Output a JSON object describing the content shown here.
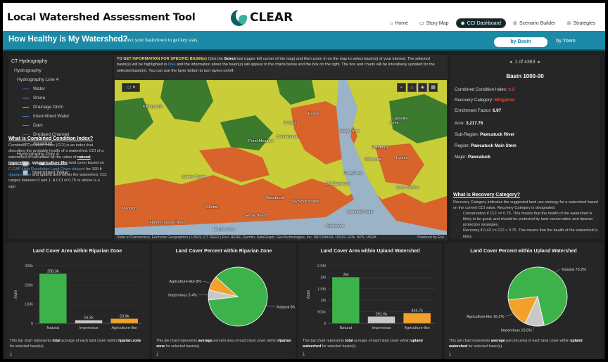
{
  "header": {
    "app_title": "Local Watershed Assessment Tool",
    "logo_text": "CLEAR",
    "nav": [
      {
        "label": "Home",
        "icon": "home-icon",
        "glyph": "⌂"
      },
      {
        "label": "Story Map",
        "icon": "map-book-icon",
        "glyph": "▭"
      },
      {
        "label": "CCI Dashboard",
        "icon": "location-icon",
        "glyph": "◉"
      },
      {
        "label": "Scenario Builder",
        "icon": "pin-icon",
        "glyph": "◎"
      },
      {
        "label": "Strategies",
        "icon": "marker-icon",
        "glyph": "◎"
      }
    ]
  },
  "banner": {
    "title": "How Healthy is My Watershed?",
    "subtitle": "select your basin/town to get key stats.",
    "by_basin": "by Basin",
    "by_town": "by Town"
  },
  "legend": {
    "title": "CT Hydrography",
    "group1": "Hydrography",
    "line_group": "Hydrography Line 4",
    "line_items": [
      {
        "label": "Water",
        "color": "#3b6fd8"
      },
      {
        "label": "Shore",
        "color": "#5aa0e8"
      },
      {
        "label": "Drainage Ditch",
        "color": "#7fd4f0"
      },
      {
        "label": "Intermittent Water",
        "color": "#4a7ad0"
      },
      {
        "label": "Dam",
        "color": "#777777"
      },
      {
        "label": "Dredged Channel",
        "color": "#555555"
      },
      {
        "label": "Aqueduct",
        "color": "#b04ab0"
      }
    ],
    "poly_group": "Hydrography Poly 4",
    "poly_items": [
      {
        "label": "Water",
        "color": "#8fa0b8"
      },
      {
        "label": "Intermittent Water",
        "color": "#b0c8d8"
      }
    ]
  },
  "cci": {
    "question": "What is Combined Condition Index?",
    "t1": "Combined Condition Index (CCI) is an index that describes the probable health of a watershed. CCI of a watershed is calculated by the ratios of ",
    "natural": "natural",
    "c1": ", ",
    "impervious": "impervious",
    "c2": ", and ",
    "aglike": "agriculture-like",
    "t2": " land cover based on ",
    "ccap": "C-CAP High Resolution Land Cover dataset",
    "t3": " for 100-ft ",
    "riparian": "riparian zone",
    "t4": " and upland area within the watershed. CCI ranges between 0 and 1. A CCI of 0.75 or above is a sign"
  },
  "map": {
    "info_head": "TO GET INFORMATION FOR SPECIFIC BASIN(s)",
    "info_1": " Click the ",
    "select": "Select",
    "info_2": " tool (upper left corner of the map) and then zoom in on the map to select basin(s) of your interest. The selected basin(s) will be highlighted in ",
    "blue_word": "blue",
    "info_3": " and the information about the basin(s) will appear in the charts below and the box on the right. The box and charts will be interatively updated for the selected basin(s). You can use the layer botton to turn layers on/off.",
    "attribution": "State of Connecticut, Earthstar Geographics | USGS, CT DEEP | Esri, HERE, Garmin, SafeGraph, GeoTechnologies, Inc, METI/NASA, USGS, EPA, NPS, USDA",
    "powered": "Powered by Esri",
    "places": [
      "Killingworth",
      "Essex",
      "Ivoryton",
      "Pond Meadow",
      "Lyme",
      "Laysville",
      "Deep River",
      "Hamburg",
      "Centerbrook",
      "Old Lyme",
      "Lymes",
      "Floral Park",
      "Old Saybrook",
      "Westbrook",
      "Saybrook Manor",
      "Clinton",
      "Grove Beach",
      "Madison",
      "Harbor View",
      "Knollwood",
      "Lyme Station",
      "Liberty Center",
      "Hammonasset Beach",
      "Cornfield Point"
    ],
    "colors": {
      "good": "#cfd13a",
      "fair": "#3c7a2e",
      "poor": "#d8642c",
      "water": "#9ab3c6"
    }
  },
  "detail": {
    "pager": "1 of 4363",
    "basin": "Basin 1000-00",
    "rows": [
      {
        "k": "Combined Condition Index:",
        "v": "0.3"
      },
      {
        "k": "Recovery Category:",
        "v": "Mitigation"
      },
      {
        "k": "Enrichment Factor:",
        "v": "6.97"
      },
      {
        "k": "Acre:",
        "v": "3,217.76"
      },
      {
        "k": "Sub-Region:",
        "v": "Pawcatuck River"
      },
      {
        "k": "Region:",
        "v": "Pawcatuck Main Stem"
      },
      {
        "k": "Major:",
        "v": "Pawcatuck"
      }
    ],
    "rc_question": "What is Recovery Category?",
    "rc_text": "Recovery Category indicates the suggested land use strategy for a watershed based on the current CCI value. Recovery Category is designated:",
    "rc_items": [
      "Conservation if CCI >= 0.75. This means that the health of the watershed is likely to be good, and should be protected by land conservation and riparian protection strategies.",
      "Recovery if 0.43 <= CCI < 0.75. This means that the health of the watershed is likely"
    ]
  },
  "chart_data": [
    {
      "type": "bar",
      "title": "Land Cover Area within Riparian Zone",
      "categories": [
        "Natural",
        "Impervious",
        "Agriculture-like"
      ],
      "values": [
        258300,
        16200,
        23900
      ],
      "value_labels": [
        "258.3k",
        "16.2k",
        "23.9k"
      ],
      "ylabel": "Acre",
      "yticks": [
        "0",
        "100k",
        "200k",
        "300k"
      ],
      "ylim": [
        0,
        300000
      ],
      "colors": [
        "#3db24a",
        "#c8c8c8",
        "#f2a12b"
      ],
      "note_pre": "This bar chart represents ",
      "note_b1": "total",
      "note_mid": " acreage of each land cover within ",
      "note_b2": "riparian zone",
      "note_post": " for selected basin(s)."
    },
    {
      "type": "pie",
      "title": "Land Cover Percent within Riparian Zone",
      "categories": [
        "Natural",
        "Impervious",
        "Agriculture-like"
      ],
      "values": [
        86.5,
        5.4,
        8
      ],
      "slice_labels": [
        "Natural 86.5%",
        "Impervious 5.4%",
        "Agriculture-like 8%"
      ],
      "colors": [
        "#3db24a",
        "#c8c8c8",
        "#f2a12b"
      ],
      "note_pre": "This pie chart represents ",
      "note_b1": "average",
      "note_mid": " percent area of each land cover within ",
      "note_b2": "riparian zone",
      "note_post": " for selected basin(s)."
    },
    {
      "type": "bar",
      "title": "Land Cover Area within Upland Watershed",
      "categories": [
        "Natural",
        "Impervious",
        "Agriculture-like"
      ],
      "values": [
        2000000,
        291600,
        444700
      ],
      "value_labels": [
        "2M",
        "291.6k",
        "444.7k"
      ],
      "ylabel": "Acre",
      "yticks": [
        "0",
        "500k",
        "1M",
        "1.5M",
        "2M",
        "2.5M"
      ],
      "ylim": [
        0,
        2500000
      ],
      "colors": [
        "#3db24a",
        "#c8c8c8",
        "#f2a12b"
      ],
      "note_pre": "This bar chart represents ",
      "note_b1": "total",
      "note_mid": " acreage of each land cover within ",
      "note_b2": "upland watershed",
      "note_post": " for selected basin(s)."
    },
    {
      "type": "pie",
      "title": "Land Cover Percent within Upland Watershed",
      "categories": [
        "Natural",
        "Impervious",
        "Agriculture-like"
      ],
      "values": [
        73.2,
        10.6,
        16.2
      ],
      "slice_labels": [
        "Natural 73.2%",
        "Impervious 10.6%",
        "Agriculture-like 16.2%"
      ],
      "colors": [
        "#3db24a",
        "#c8c8c8",
        "#f2a12b"
      ],
      "note_pre": "This pie chart represents ",
      "note_b1": "average",
      "note_mid": " percent area of each land cover within ",
      "note_b2": "upland watershed",
      "note_post": " for selected basin(s)."
    }
  ]
}
